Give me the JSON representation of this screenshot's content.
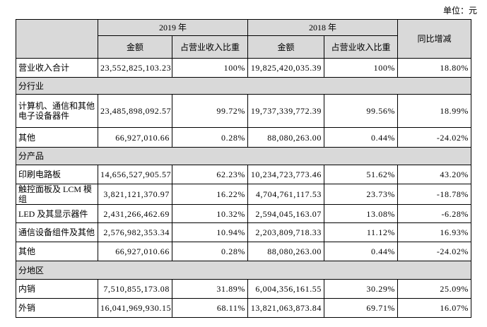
{
  "unit": "单位：元",
  "table": {
    "header": {
      "years": [
        "2019 年",
        "2018 年"
      ],
      "yoy": "同比增减",
      "sub": [
        "金额",
        "占营业收入比重",
        "金额",
        "占营业收入比重"
      ]
    },
    "rows": [
      [
        "营业收入合计",
        "23,552,825,103.23",
        "100%",
        "19,825,420,035.39",
        "100%",
        "18.80%"
      ],
      [
        "分行业"
      ],
      [
        "计算机、通信和其他电子设备器件",
        "23,485,898,092.57",
        "99.72%",
        "19,737,339,772.39",
        "99.56%",
        "18.99%"
      ],
      [
        "其他",
        "66,927,010.66",
        "0.28%",
        "88,080,263.00",
        "0.44%",
        "-24.02%"
      ],
      [
        "分产品"
      ],
      [
        "印刷电路板",
        "14,656,527,905.57",
        "62.23%",
        "10,234,723,773.46",
        "51.62%",
        "43.20%"
      ],
      [
        "触控面板及 LCM 模组",
        "3,821,121,370.97",
        "16.22%",
        "4,704,761,117.53",
        "23.73%",
        "-18.78%"
      ],
      [
        "LED 及其显示器件",
        "2,431,266,462.69",
        "10.32%",
        "2,594,045,163.07",
        "13.08%",
        "-6.28%"
      ],
      [
        "通信设备组件及其他",
        "2,576,982,353.34",
        "10.94%",
        "2,203,809,718.33",
        "11.12%",
        "16.93%"
      ],
      [
        "其他",
        "66,927,010.66",
        "0.28%",
        "88,080,263.00",
        "0.44%",
        "-24.02%"
      ],
      [
        "分地区"
      ],
      [
        "内销",
        "7,510,855,173.08",
        "31.89%",
        "6,004,356,161.55",
        "30.29%",
        "25.09%"
      ],
      [
        "外销",
        "16,041,969,930.15",
        "68.11%",
        "13,821,063,873.84",
        "69.71%",
        "16.07%"
      ]
    ]
  }
}
